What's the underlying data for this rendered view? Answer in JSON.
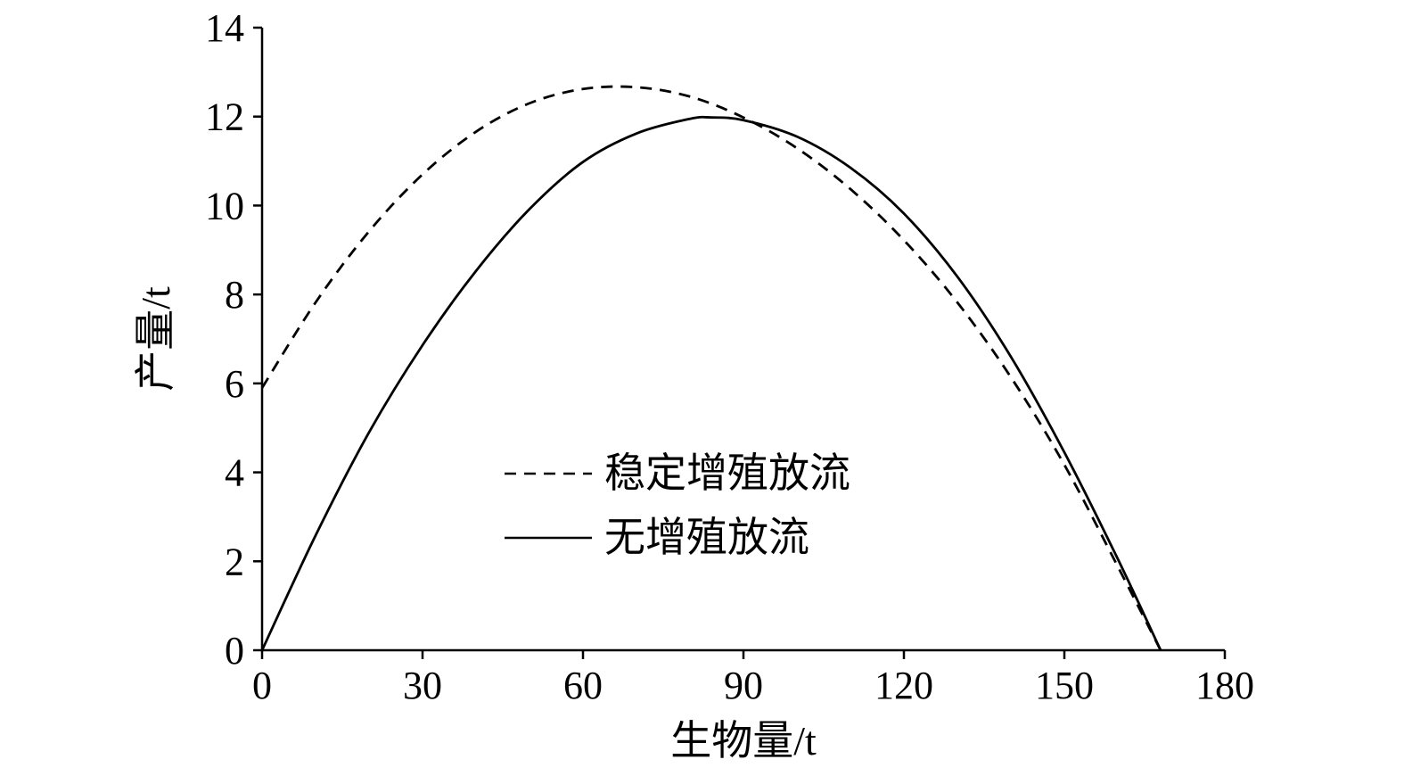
{
  "chart_data": {
    "type": "line",
    "xlabel": "生物量/t",
    "ylabel": "产量/t",
    "xlim": [
      0,
      180
    ],
    "ylim": [
      0,
      14
    ],
    "xticks": [
      0,
      30,
      60,
      90,
      120,
      150,
      180
    ],
    "yticks": [
      0,
      2,
      4,
      6,
      8,
      10,
      12,
      14
    ],
    "grid": false,
    "legend_position": "center",
    "series": [
      {
        "name": "稳定增殖放流",
        "style": "dashed",
        "color": "#000000",
        "x": [
          0,
          10,
          20,
          30,
          40,
          50,
          60,
          70,
          80,
          90,
          100,
          110,
          120,
          130,
          140,
          150,
          160,
          168
        ],
        "y": [
          5.9,
          7.82,
          9.42,
          10.7,
          11.66,
          12.3,
          12.62,
          12.66,
          12.45,
          11.98,
          11.29,
          10.37,
          9.22,
          7.82,
          6.14,
          4.17,
          1.88,
          0.0
        ]
      },
      {
        "name": "无增殖放流",
        "style": "solid",
        "color": "#000000",
        "x": [
          0,
          10,
          20,
          30,
          40,
          50,
          60,
          70,
          80,
          84,
          90,
          100,
          110,
          120,
          130,
          140,
          150,
          160,
          168
        ],
        "y": [
          0.0,
          2.58,
          4.9,
          6.86,
          8.53,
          9.92,
          10.98,
          11.62,
          11.95,
          11.98,
          11.92,
          11.55,
          10.85,
          9.82,
          8.4,
          6.6,
          4.45,
          2.05,
          0.0
        ]
      }
    ]
  }
}
